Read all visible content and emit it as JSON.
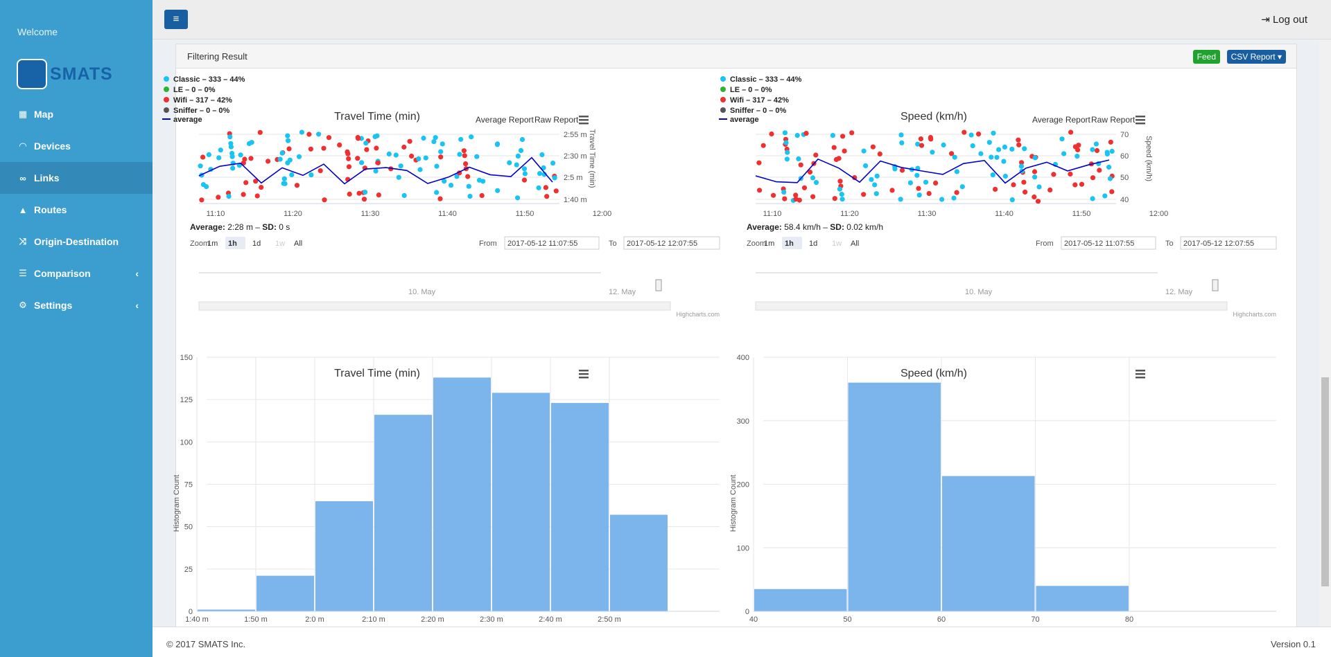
{
  "sidebar": {
    "welcome": "Welcome",
    "logo_text": "SMATS",
    "items": [
      {
        "label": "Map",
        "icon": "map-icon"
      },
      {
        "label": "Devices",
        "icon": "wifi-icon"
      },
      {
        "label": "Links",
        "icon": "link-icon"
      },
      {
        "label": "Routes",
        "icon": "road-icon"
      },
      {
        "label": "Origin-Destination",
        "icon": "random-icon"
      },
      {
        "label": "Comparison",
        "icon": "table-icon"
      },
      {
        "label": "Settings",
        "icon": "gear-icon"
      }
    ]
  },
  "topbar": {
    "logout": "Log out"
  },
  "panel": {
    "title": "Filtering Result",
    "feed": "Feed",
    "csv": "CSV Report"
  },
  "footer": {
    "copyright": "© 2017 SMATS Inc.",
    "version": "Version 0.1"
  },
  "legend": {
    "classic": "Classic – 333 – 44%",
    "le": "LE – 0 – 0%",
    "wifi": "Wifi – 317 – 42%",
    "sniffer": "Sniffer – 0 – 0%",
    "average": "average"
  },
  "colors": {
    "classic": "#19c3f2",
    "le": "#2fb22f",
    "wifi": "#ee3030",
    "sniffer": "#555555",
    "average": "#0000cc",
    "bar": "#7cb5ec"
  },
  "common": {
    "avg_report": "Average Report",
    "raw_report": "Raw Report",
    "zoom": "Zoom",
    "zoom_buttons": [
      "1m",
      "1h",
      "1d",
      "1w",
      "All"
    ],
    "from_label": "From",
    "to_label": "To",
    "from_value": "2017-05-12 11:07:55",
    "to_value": "2017-05-12 12:07:55",
    "nav_labels": [
      "10. May",
      "12. May"
    ],
    "credits": "Highcharts.com",
    "time_ticks": [
      "11:10",
      "11:20",
      "11:30",
      "11:40",
      "11:50",
      "12:00"
    ]
  },
  "chart_data": [
    {
      "type": "scatter",
      "title": "Travel Time (min)",
      "ylabel": "Travel Time (min)",
      "xlabel": "",
      "yticks": [
        "2:55 m",
        "2:30 m",
        "2:5 m",
        "1:40 m"
      ],
      "stats_label": "Average",
      "stats": "2:28 m",
      "sd_label": "SD",
      "sd": "0 s",
      "series": [
        "Classic",
        "LE",
        "Wifi",
        "Sniffer",
        "average"
      ]
    },
    {
      "type": "scatter",
      "title": "Speed (km/h)",
      "ylabel": "Speed (km/h)",
      "xlabel": "",
      "yticks": [
        "70",
        "60",
        "50",
        "40"
      ],
      "stats_label": "Average",
      "stats": "58.4 km/h",
      "sd_label": "SD",
      "sd": "0.02 km/h",
      "series": [
        "Classic",
        "LE",
        "Wifi",
        "Sniffer",
        "average"
      ]
    },
    {
      "type": "bar",
      "title": "Travel Time (min)",
      "ylabel": "Histogram Count",
      "xlabel": "",
      "categories": [
        "1:40 m",
        "1:50 m",
        "2:0 m",
        "2:10 m",
        "2:20 m",
        "2:30 m",
        "2:40 m",
        "2:50 m"
      ],
      "values": [
        1,
        21,
        65,
        116,
        138,
        129,
        123,
        57
      ],
      "yticks": [
        0,
        25,
        50,
        75,
        100,
        125,
        150
      ],
      "ylim": [
        0,
        150
      ]
    },
    {
      "type": "bar",
      "title": "Speed (km/h)",
      "ylabel": "Histogram Count",
      "xlabel": "",
      "categories": [
        "40",
        "50",
        "60",
        "70",
        "80"
      ],
      "values": [
        35,
        360,
        213,
        40,
        0
      ],
      "yticks": [
        0,
        100,
        200,
        300,
        400
      ],
      "ylim": [
        0,
        400
      ]
    }
  ]
}
